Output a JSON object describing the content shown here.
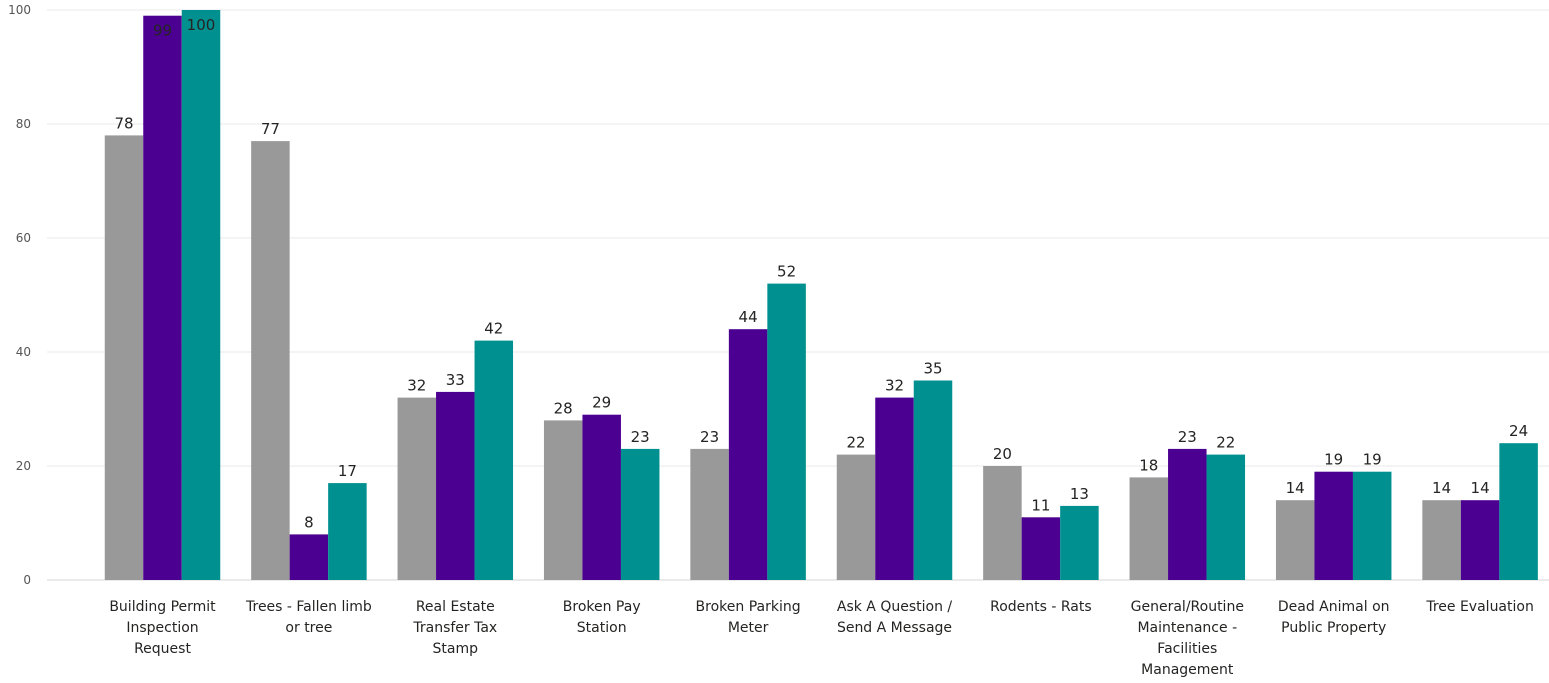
{
  "chart_data": {
    "type": "bar",
    "categories": [
      [
        "Building Permit",
        "Inspection",
        "Request"
      ],
      [
        "Trees - Fallen limb",
        "or tree"
      ],
      [
        "Real Estate",
        "Transfer Tax",
        "Stamp"
      ],
      [
        "Broken Pay",
        "Station"
      ],
      [
        "Broken Parking",
        "Meter"
      ],
      [
        "Ask A Question /",
        "Send A Message"
      ],
      [
        "Rodents - Rats"
      ],
      [
        "General/Routine",
        "Maintenance -",
        "Facilities",
        "Management"
      ],
      [
        "Dead Animal on",
        "Public Property"
      ],
      [
        "Tree Evaluation"
      ]
    ],
    "series": [
      {
        "values": [
          78,
          77,
          32,
          28,
          23,
          22,
          20,
          18,
          14,
          14
        ],
        "color": "#999999"
      },
      {
        "values": [
          99,
          8,
          33,
          29,
          44,
          32,
          11,
          23,
          19,
          14
        ],
        "color": "#4b0092"
      },
      {
        "values": [
          100,
          17,
          42,
          23,
          52,
          35,
          13,
          22,
          19,
          24
        ],
        "color": "#009090"
      }
    ],
    "ylim": [
      0,
      100
    ],
    "yticks": [
      0,
      20,
      40,
      60,
      80,
      100
    ],
    "grid": true,
    "legend": "none",
    "title": "",
    "xlabel": "",
    "ylabel": ""
  }
}
